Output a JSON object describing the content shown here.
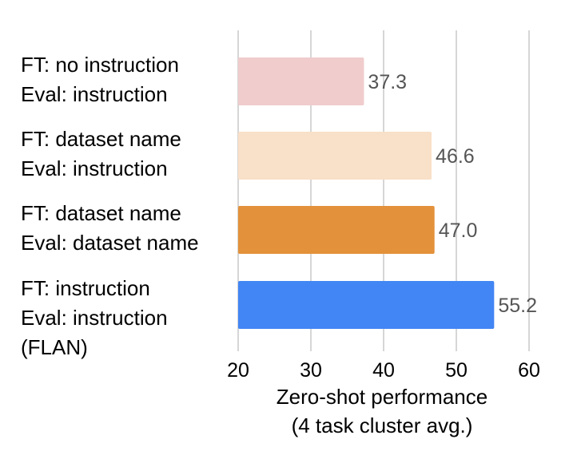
{
  "chart_data": {
    "type": "bar",
    "orientation": "horizontal",
    "categories": [
      [
        "FT: no instruction",
        "Eval: instruction"
      ],
      [
        "FT: dataset name",
        "Eval: instruction"
      ],
      [
        "FT: dataset name",
        "Eval: dataset name"
      ],
      [
        "FT: instruction",
        "Eval: instruction",
        "(FLAN)"
      ]
    ],
    "values": [
      37.3,
      46.6,
      47.0,
      55.2
    ],
    "value_labels": [
      "37.3",
      "46.6",
      "47.0",
      "55.2"
    ],
    "colors": [
      "#f0cccc",
      "#f9e0c9",
      "#e3913a",
      "#4285f4"
    ],
    "xlabel": [
      "Zero-shot performance",
      "(4 task cluster avg.)"
    ],
    "xlim": [
      20,
      60
    ],
    "xticks": [
      20,
      30,
      40,
      50,
      60
    ],
    "grid": true
  }
}
